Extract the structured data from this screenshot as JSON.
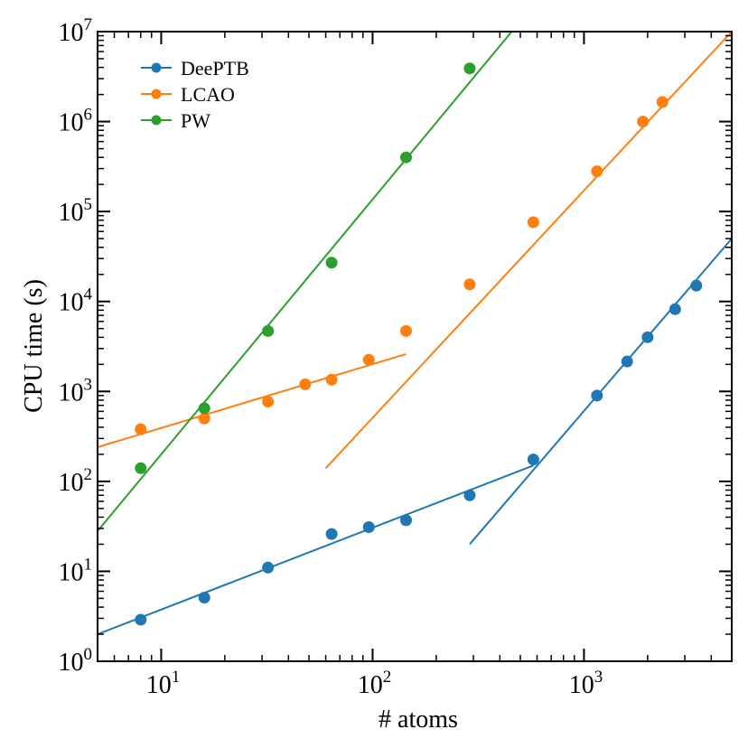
{
  "chart_data": {
    "type": "scatter",
    "title": "",
    "xlabel": "# atoms",
    "ylabel": "CPU time (s)",
    "xscale": "log",
    "yscale": "log",
    "xlim": [
      5,
      5000
    ],
    "ylim": [
      1,
      10000000
    ],
    "grid": false,
    "legend_position": "top-left",
    "x_ticks": [
      {
        "base": "10",
        "exp": "1",
        "value": 10
      },
      {
        "base": "10",
        "exp": "2",
        "value": 100
      },
      {
        "base": "10",
        "exp": "3",
        "value": 1000
      }
    ],
    "y_ticks": [
      {
        "base": "10",
        "exp": "0",
        "value": 1
      },
      {
        "base": "10",
        "exp": "1",
        "value": 10
      },
      {
        "base": "10",
        "exp": "2",
        "value": 100
      },
      {
        "base": "10",
        "exp": "3",
        "value": 1000
      },
      {
        "base": "10",
        "exp": "4",
        "value": 10000
      },
      {
        "base": "10",
        "exp": "5",
        "value": 100000
      },
      {
        "base": "10",
        "exp": "6",
        "value": 1000000
      },
      {
        "base": "10",
        "exp": "7",
        "value": 10000000
      }
    ],
    "series": [
      {
        "name": "DeePTB",
        "color": "#1f77b4",
        "points": [
          [
            8,
            2.9
          ],
          [
            16,
            5.1
          ],
          [
            32,
            11
          ],
          [
            64,
            26
          ],
          [
            96,
            31
          ],
          [
            144,
            37
          ],
          [
            288,
            70
          ],
          [
            576,
            175
          ],
          [
            1152,
            900
          ],
          [
            1600,
            2150
          ],
          [
            2000,
            4000
          ],
          [
            2700,
            8200
          ],
          [
            3400,
            15000
          ]
        ],
        "fits": [
          {
            "from": [
              5,
              2.0
            ],
            "to": [
              576,
              150
            ]
          },
          {
            "from": [
              288,
              20
            ],
            "to": [
              5000,
              50000
            ]
          }
        ]
      },
      {
        "name": "LCAO",
        "color": "#ff7f0e",
        "points": [
          [
            8,
            380
          ],
          [
            16,
            500
          ],
          [
            32,
            770
          ],
          [
            48,
            1200
          ],
          [
            64,
            1350
          ],
          [
            96,
            2250
          ],
          [
            144,
            4700
          ],
          [
            288,
            15500
          ],
          [
            576,
            76000
          ],
          [
            1152,
            280000
          ],
          [
            1900,
            1000000
          ],
          [
            2350,
            1650000
          ]
        ],
        "fits": [
          {
            "from": [
              5,
              240
            ],
            "to": [
              144,
              2600
            ]
          },
          {
            "from": [
              60,
              140
            ],
            "to": [
              5000,
              10000000
            ]
          }
        ]
      },
      {
        "name": "PW",
        "color": "#2ca02c",
        "points": [
          [
            8,
            140
          ],
          [
            16,
            650
          ],
          [
            32,
            4700
          ],
          [
            64,
            27000
          ],
          [
            144,
            400000
          ],
          [
            288,
            3900000
          ]
        ],
        "fits": [
          {
            "from": [
              5,
              28
            ],
            "to": [
              455,
              10000000
            ]
          }
        ]
      }
    ]
  }
}
